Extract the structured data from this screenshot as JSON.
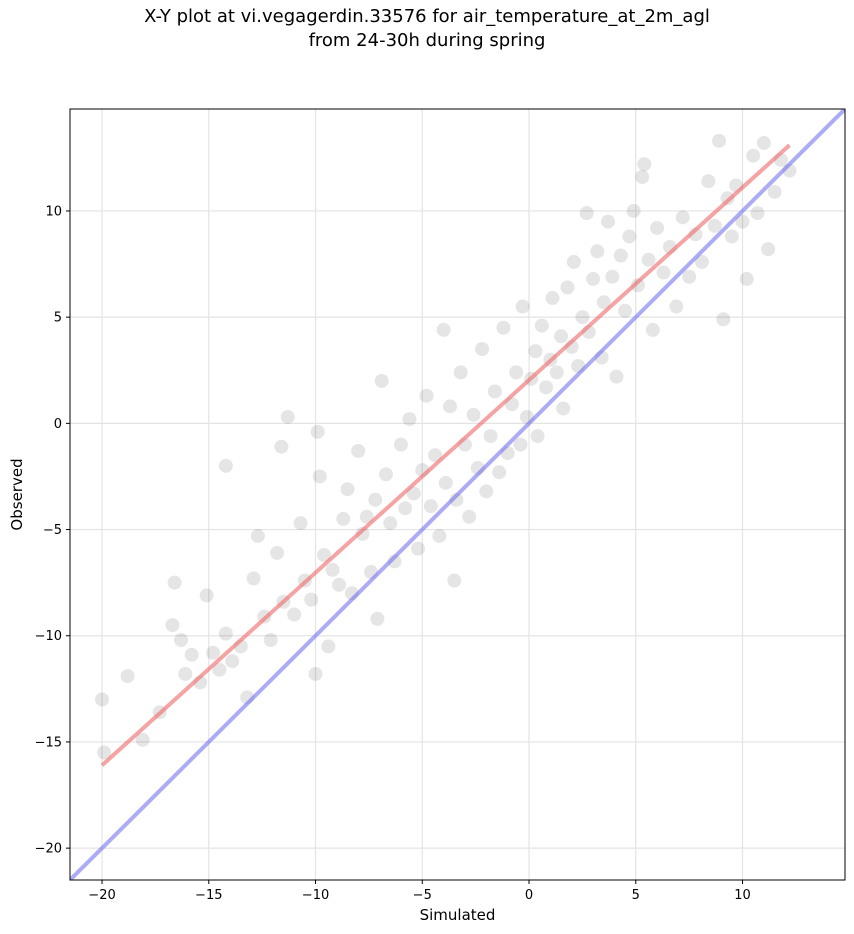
{
  "chart_data": {
    "type": "scatter",
    "title": "X-Y plot at vi.vegagerdin.33576 for air_temperature_at_2m_agl",
    "subtitle": "from 24-30h during spring",
    "xlabel": "Simulated",
    "ylabel": "Observed",
    "xlim": [
      -21.5,
      14.8
    ],
    "ylim": [
      -21.5,
      14.8
    ],
    "xticks": [
      -20,
      -15,
      -10,
      -5,
      0,
      5,
      10
    ],
    "yticks": [
      -20,
      -15,
      -10,
      -5,
      0,
      5,
      10
    ],
    "xtick_labels": [
      "−20",
      "−15",
      "−10",
      "−5",
      "0",
      "5",
      "10"
    ],
    "ytick_labels": [
      "−20",
      "−15",
      "−10",
      "−5",
      "0",
      "5",
      "10"
    ],
    "grid": true,
    "marker_color": "#000000",
    "marker_alpha": 0.1,
    "points": [
      [
        -20,
        -13
      ],
      [
        -19.9,
        -15.5
      ],
      [
        -18.8,
        -11.9
      ],
      [
        -18.1,
        -14.9
      ],
      [
        -17.3,
        -13.6
      ],
      [
        -16.6,
        -7.5
      ],
      [
        -16.7,
        -9.5
      ],
      [
        -16.3,
        -10.2
      ],
      [
        -16.1,
        -11.8
      ],
      [
        -15.8,
        -10.9
      ],
      [
        -15.4,
        -12.2
      ],
      [
        -15.1,
        -8.1
      ],
      [
        -14.8,
        -10.8
      ],
      [
        -14.5,
        -11.6
      ],
      [
        -14.2,
        -9.9
      ],
      [
        -14.2,
        -2
      ],
      [
        -13.9,
        -11.2
      ],
      [
        -13.5,
        -10.5
      ],
      [
        -13.2,
        -12.9
      ],
      [
        -12.9,
        -7.3
      ],
      [
        -12.7,
        -5.3
      ],
      [
        -12.4,
        -9.1
      ],
      [
        -12.1,
        -10.2
      ],
      [
        -11.8,
        -6.1
      ],
      [
        -11.5,
        -8.4
      ],
      [
        -11.3,
        0.3
      ],
      [
        -11.6,
        -1.1
      ],
      [
        -11.0,
        -9.0
      ],
      [
        -10.7,
        -4.7
      ],
      [
        -10.5,
        -7.4
      ],
      [
        -10.2,
        -8.3
      ],
      [
        -10.0,
        -11.8
      ],
      [
        -9.9,
        -0.4
      ],
      [
        -9.8,
        -2.5
      ],
      [
        -9.6,
        -6.2
      ],
      [
        -9.4,
        -10.5
      ],
      [
        -9.2,
        -6.9
      ],
      [
        -8.9,
        -7.6
      ],
      [
        -8.7,
        -4.5
      ],
      [
        -8.5,
        -3.1
      ],
      [
        -8.3,
        -8.0
      ],
      [
        -8.0,
        -1.3
      ],
      [
        -7.8,
        -5.2
      ],
      [
        -7.6,
        -4.4
      ],
      [
        -7.4,
        -7.0
      ],
      [
        -7.2,
        -3.6
      ],
      [
        -7.1,
        -9.2
      ],
      [
        -6.9,
        2.0
      ],
      [
        -6.7,
        -2.4
      ],
      [
        -6.5,
        -4.7
      ],
      [
        -6.3,
        -6.5
      ],
      [
        -6.0,
        -1.0
      ],
      [
        -5.8,
        -4.0
      ],
      [
        -5.6,
        0.2
      ],
      [
        -5.4,
        -3.3
      ],
      [
        -5.2,
        -5.9
      ],
      [
        -5.0,
        -2.2
      ],
      [
        -4.8,
        1.3
      ],
      [
        -4.6,
        -3.9
      ],
      [
        -4.4,
        -1.5
      ],
      [
        -4.2,
        -5.3
      ],
      [
        -4.0,
        4.4
      ],
      [
        -3.9,
        -2.8
      ],
      [
        -3.7,
        0.8
      ],
      [
        -3.5,
        -7.4
      ],
      [
        -3.4,
        -3.6
      ],
      [
        -3.2,
        2.4
      ],
      [
        -3.0,
        -1.0
      ],
      [
        -2.8,
        -4.4
      ],
      [
        -2.6,
        0.4
      ],
      [
        -2.4,
        -2.1
      ],
      [
        -2.2,
        3.5
      ],
      [
        -2.0,
        -3.2
      ],
      [
        -1.8,
        -0.6
      ],
      [
        -1.6,
        1.5
      ],
      [
        -1.4,
        -2.3
      ],
      [
        -1.2,
        4.5
      ],
      [
        -1.0,
        -1.4
      ],
      [
        -0.8,
        0.9
      ],
      [
        -0.6,
        2.4
      ],
      [
        -0.4,
        -1.0
      ],
      [
        -0.3,
        5.5
      ],
      [
        -0.1,
        0.3
      ],
      [
        0.1,
        2.1
      ],
      [
        0.3,
        3.4
      ],
      [
        0.4,
        -0.6
      ],
      [
        0.6,
        4.6
      ],
      [
        0.8,
        1.7
      ],
      [
        1.0,
        3.0
      ],
      [
        1.1,
        5.9
      ],
      [
        1.3,
        2.4
      ],
      [
        1.5,
        4.1
      ],
      [
        1.6,
        0.7
      ],
      [
        1.8,
        6.4
      ],
      [
        2.0,
        3.6
      ],
      [
        2.1,
        7.6
      ],
      [
        2.3,
        2.7
      ],
      [
        2.5,
        5.0
      ],
      [
        2.7,
        9.9
      ],
      [
        2.8,
        4.3
      ],
      [
        3.0,
        6.8
      ],
      [
        3.2,
        8.1
      ],
      [
        3.4,
        3.1
      ],
      [
        3.5,
        5.7
      ],
      [
        3.7,
        9.5
      ],
      [
        3.9,
        6.9
      ],
      [
        4.1,
        2.2
      ],
      [
        4.3,
        7.9
      ],
      [
        4.5,
        5.3
      ],
      [
        4.7,
        8.8
      ],
      [
        4.9,
        10.0
      ],
      [
        5.1,
        6.5
      ],
      [
        5.3,
        11.6
      ],
      [
        5.4,
        12.2
      ],
      [
        5.6,
        7.7
      ],
      [
        5.8,
        4.4
      ],
      [
        6.0,
        9.2
      ],
      [
        6.3,
        7.1
      ],
      [
        6.6,
        8.3
      ],
      [
        6.9,
        5.5
      ],
      [
        7.2,
        9.7
      ],
      [
        7.5,
        6.9
      ],
      [
        7.8,
        8.9
      ],
      [
        8.1,
        7.6
      ],
      [
        8.4,
        11.4
      ],
      [
        8.7,
        9.3
      ],
      [
        8.9,
        13.3
      ],
      [
        9.1,
        4.9
      ],
      [
        9.3,
        10.6
      ],
      [
        9.5,
        8.8
      ],
      [
        9.7,
        11.2
      ],
      [
        10.0,
        9.5
      ],
      [
        10.2,
        6.8
      ],
      [
        10.5,
        12.6
      ],
      [
        10.7,
        9.9
      ],
      [
        11.0,
        13.2
      ],
      [
        11.2,
        8.2
      ],
      [
        11.5,
        10.9
      ],
      [
        11.8,
        12.4
      ],
      [
        12.2,
        11.9
      ]
    ],
    "fit_line": {
      "color": "#ee6666",
      "x": [
        -20,
        12.2
      ],
      "y": [
        -16.1,
        13.1
      ]
    },
    "identity_line": {
      "color": "#6666ee",
      "x": [
        -21.5,
        14.8
      ],
      "y": [
        -21.5,
        14.8
      ]
    }
  }
}
